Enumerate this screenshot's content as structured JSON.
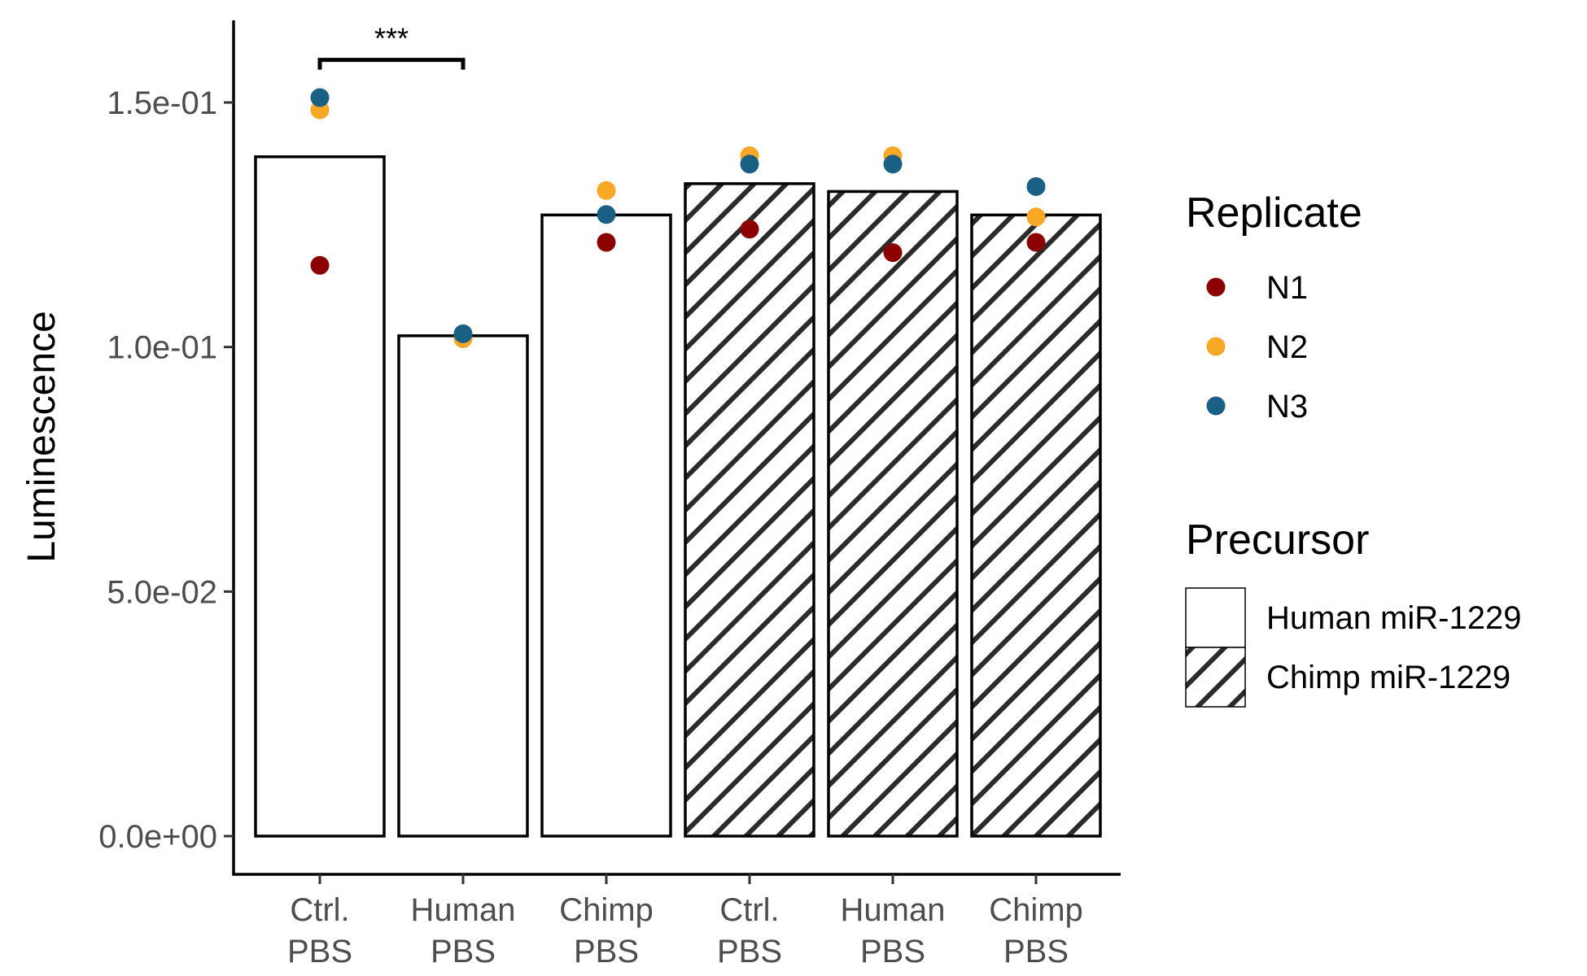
{
  "chart_data": {
    "type": "bar",
    "title": "",
    "xlabel": "",
    "ylabel": "Luminescence",
    "ylim": [
      -0.0065,
      0.166
    ],
    "yticks": [
      0.0,
      0.05,
      0.1,
      0.15
    ],
    "ytick_labels": [
      "0.0e+00",
      "5.0e-02",
      "1.0e-01",
      "1.5e-01"
    ],
    "grid": false,
    "legend_position": "right",
    "categories": [
      {
        "line1": "Ctrl.",
        "line2": "PBS",
        "precursor": "human"
      },
      {
        "line1": "Human",
        "line2": "PBS",
        "precursor": "human"
      },
      {
        "line1": "Chimp",
        "line2": "PBS",
        "precursor": "human"
      },
      {
        "line1": "Ctrl.",
        "line2": "PBS",
        "precursor": "chimp"
      },
      {
        "line1": "Human",
        "line2": "PBS",
        "precursor": "chimp"
      },
      {
        "line1": "Chimp",
        "line2": "PBS",
        "precursor": "chimp"
      }
    ],
    "bar_values": [
      0.1389,
      0.1023,
      0.127,
      0.1334,
      0.1318,
      0.127
    ],
    "points": [
      {
        "replicate": "N1",
        "values": [
          0.1167,
          null,
          0.1214,
          0.1241,
          0.1193,
          0.1214
        ]
      },
      {
        "replicate": "N2",
        "values": [
          0.1485,
          0.1017,
          0.132,
          0.1391,
          0.1391,
          0.1266
        ]
      },
      {
        "replicate": "N3",
        "values": [
          0.151,
          0.1027,
          0.1271,
          0.1374,
          0.1374,
          0.1328
        ]
      }
    ],
    "significance": {
      "from": 0,
      "to": 1,
      "y": 0.1587,
      "label": "***"
    },
    "legend_replicate": {
      "title": "Replicate",
      "items": [
        {
          "label": "N1",
          "color": "#8b0000"
        },
        {
          "label": "N2",
          "color": "#f9a825"
        },
        {
          "label": "N3",
          "color": "#1a5f84"
        }
      ]
    },
    "legend_precursor": {
      "title": "Precursor",
      "items": [
        {
          "label": "Human miR-1229",
          "pattern": "none"
        },
        {
          "label": "Chimp miR-1229",
          "pattern": "stripe"
        }
      ]
    }
  }
}
